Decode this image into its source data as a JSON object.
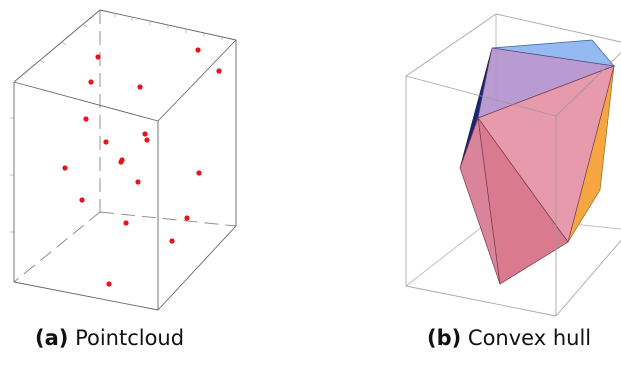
{
  "panels": [
    {
      "id": "a",
      "caption_label": "(a)",
      "caption_text": "Pointcloud",
      "point_color": "#e8141b",
      "box_line_color": "#555555"
    },
    {
      "id": "b",
      "caption_label": "(b)",
      "caption_text": "Convex hull",
      "face_colors": [
        "#6e8fd8",
        "#e27a8f",
        "#b98bc0",
        "#f6a640",
        "#1a237e"
      ],
      "box_line_color": "#888888"
    }
  ]
}
